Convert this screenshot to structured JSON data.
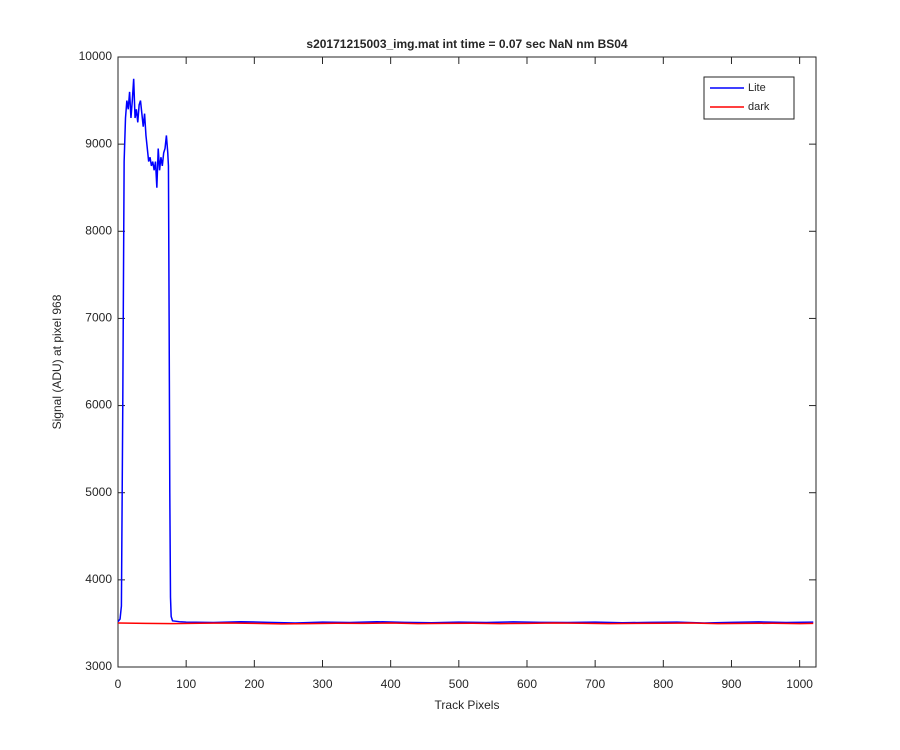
{
  "chart_data": {
    "type": "line",
    "title": "s20171215003_img.mat int time = 0.07 sec  NaN nm BS04",
    "xlabel": "Track Pixels",
    "ylabel": "Signal (ADU) at pixel 968",
    "xlim": [
      0,
      1024
    ],
    "ylim": [
      3000,
      10000
    ],
    "xticks": [
      0,
      100,
      200,
      300,
      400,
      500,
      600,
      700,
      800,
      900,
      1000
    ],
    "yticks": [
      3000,
      4000,
      5000,
      6000,
      7000,
      8000,
      9000,
      10000
    ],
    "legend": "upper right",
    "series": [
      {
        "name": "Lite",
        "color": "#0000ff",
        "x": [
          0,
          3,
          5,
          7,
          9,
          11,
          13,
          15,
          17,
          19,
          21,
          23,
          25,
          27,
          29,
          31,
          33,
          35,
          37,
          39,
          41,
          43,
          45,
          47,
          49,
          51,
          53,
          55,
          57,
          59,
          61,
          63,
          65,
          67,
          69,
          71,
          73,
          74,
          75,
          76,
          77,
          78,
          80,
          90,
          100,
          140,
          180,
          220,
          260,
          300,
          340,
          380,
          420,
          460,
          500,
          540,
          580,
          620,
          660,
          700,
          740,
          780,
          820,
          860,
          900,
          940,
          980,
          1020
        ],
        "values": [
          3520,
          3550,
          3700,
          6000,
          8800,
          9300,
          9500,
          9400,
          9600,
          9300,
          9500,
          9750,
          9300,
          9400,
          9250,
          9450,
          9500,
          9350,
          9200,
          9350,
          9100,
          8950,
          8800,
          8850,
          8750,
          8800,
          8700,
          8800,
          8500,
          8950,
          8700,
          8850,
          8750,
          8900,
          8950,
          9100,
          8900,
          8750,
          7000,
          5000,
          3800,
          3580,
          3530,
          3520,
          3515,
          3510,
          3520,
          3512,
          3505,
          3515,
          3510,
          3520,
          3512,
          3508,
          3515,
          3510,
          3518,
          3512,
          3510,
          3515,
          3508,
          3512,
          3515,
          3505,
          3512,
          3518,
          3510,
          3515
        ]
      },
      {
        "name": "dark",
        "color": "#ff0000",
        "x": [
          0,
          40,
          80,
          120,
          160,
          200,
          240,
          280,
          320,
          360,
          400,
          440,
          480,
          520,
          560,
          600,
          640,
          680,
          720,
          760,
          800,
          840,
          880,
          920,
          960,
          1000,
          1020
        ],
        "values": [
          3505,
          3500,
          3498,
          3502,
          3505,
          3500,
          3495,
          3498,
          3502,
          3500,
          3505,
          3498,
          3500,
          3502,
          3498,
          3500,
          3505,
          3502,
          3498,
          3500,
          3502,
          3505,
          3498,
          3500,
          3502,
          3498,
          3500
        ]
      }
    ]
  }
}
